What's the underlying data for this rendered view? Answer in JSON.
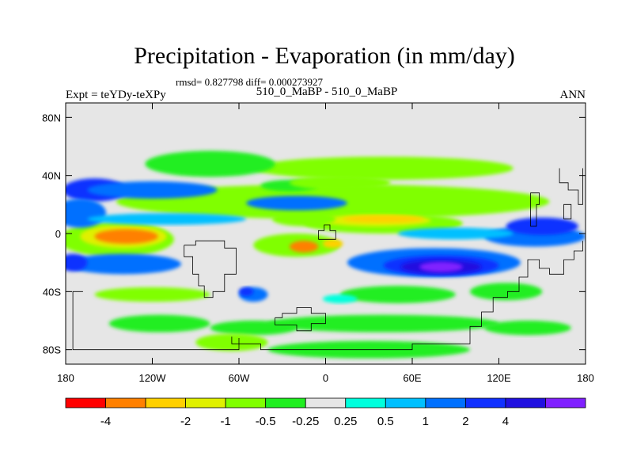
{
  "chart_data": {
    "type": "heatmap",
    "title": "Precipitation - Evaporation (in mm/day)",
    "stats_line": "rmsd= 0.827798 diff= 0.000273927",
    "left_label": "Expt = teYDy-teXPy",
    "center_label": "510_0_MaBP - 510_0_MaBP",
    "right_label": "ANN",
    "x_range": [
      -180,
      180
    ],
    "y_range": [
      -90,
      90
    ],
    "x_ticks": [
      {
        "value": -180,
        "label": "180"
      },
      {
        "value": -120,
        "label": "120W"
      },
      {
        "value": -60,
        "label": "60W"
      },
      {
        "value": 0,
        "label": "0"
      },
      {
        "value": 60,
        "label": "60E"
      },
      {
        "value": 120,
        "label": "120E"
      },
      {
        "value": 180,
        "label": "180"
      }
    ],
    "y_ticks": [
      {
        "value": 80,
        "label": "80N"
      },
      {
        "value": 40,
        "label": "40N"
      },
      {
        "value": 0,
        "label": "0"
      },
      {
        "value": -40,
        "label": "40S"
      },
      {
        "value": -80,
        "label": "80S"
      }
    ],
    "colorbar": {
      "colors": [
        "#ff0000",
        "#ff8000",
        "#ffd000",
        "#e0f000",
        "#80ff00",
        "#20ee20",
        "#e6e6e6",
        "#00ffdd",
        "#00c0ff",
        "#0070ff",
        "#1030ff",
        "#2010e0",
        "#8020ff"
      ],
      "labels": [
        "-4",
        "-2",
        "-1",
        "-0.5",
        "-0.25",
        "0.25",
        "0.5",
        "1",
        "2",
        "4"
      ],
      "label_positions": [
        1,
        3,
        4,
        5,
        6,
        7,
        8,
        9,
        10,
        11
      ]
    },
    "background_color": "#e6e6e6",
    "field": [
      {
        "lon": 5,
        "lat": 22,
        "rx": 150,
        "ry": 12,
        "level": 4
      },
      {
        "lon": -25,
        "lat": 33,
        "rx": 20,
        "ry": 4,
        "level": 5
      },
      {
        "lon": 40,
        "lat": 45,
        "rx": 90,
        "ry": 8,
        "level": 4
      },
      {
        "lon": -80,
        "lat": 48,
        "rx": 45,
        "ry": 9,
        "level": 5
      },
      {
        "lon": 10,
        "lat": 35,
        "rx": 35,
        "ry": 5,
        "level": 4
      },
      {
        "lon": 40,
        "lat": 7,
        "rx": 55,
        "ry": 7,
        "level": 4
      },
      {
        "lon": 35,
        "lat": 9,
        "rx": 38,
        "ry": 4,
        "level": 3
      },
      {
        "lon": 40,
        "lat": 10,
        "rx": 28,
        "ry": 2.5,
        "level": 2
      },
      {
        "lon": -15,
        "lat": 10,
        "rx": 22,
        "ry": 5,
        "level": 4
      },
      {
        "lon": -145,
        "lat": -4,
        "rx": 40,
        "ry": 12,
        "level": 4
      },
      {
        "lon": -140,
        "lat": -2,
        "rx": 30,
        "ry": 8,
        "level": 3
      },
      {
        "lon": -138,
        "lat": -2,
        "rx": 22,
        "ry": 5,
        "level": 1
      },
      {
        "lon": -20,
        "lat": -8,
        "rx": 30,
        "ry": 8,
        "level": 4
      },
      {
        "lon": -15,
        "lat": -9,
        "rx": 10,
        "ry": 4,
        "level": 1
      },
      {
        "lon": 5,
        "lat": -7,
        "rx": 7,
        "ry": 3,
        "level": 2
      },
      {
        "lon": -160,
        "lat": 30,
        "rx": 22,
        "ry": 8,
        "level": 10
      },
      {
        "lon": -120,
        "lat": 30,
        "rx": 45,
        "ry": 6,
        "level": 9
      },
      {
        "lon": -170,
        "lat": 14,
        "rx": 18,
        "ry": 10,
        "level": 9
      },
      {
        "lon": -110,
        "lat": 10,
        "rx": 55,
        "ry": 4,
        "level": 8
      },
      {
        "lon": -140,
        "lat": -21,
        "rx": 40,
        "ry": 7,
        "level": 9
      },
      {
        "lon": -175,
        "lat": -20,
        "rx": 10,
        "ry": 6,
        "level": 10
      },
      {
        "lon": -20,
        "lat": 21,
        "rx": 35,
        "ry": 5,
        "level": 9
      },
      {
        "lon": 75,
        "lat": -20,
        "rx": 60,
        "ry": 10,
        "level": 9
      },
      {
        "lon": 80,
        "lat": -22,
        "rx": 40,
        "ry": 7,
        "level": 10
      },
      {
        "lon": 80,
        "lat": -23,
        "rx": 28,
        "ry": 5,
        "level": 11
      },
      {
        "lon": 80,
        "lat": -23,
        "rx": 15,
        "ry": 3.5,
        "level": 12
      },
      {
        "lon": 145,
        "lat": -2,
        "rx": 35,
        "ry": 7,
        "level": 9
      },
      {
        "lon": 150,
        "lat": 5,
        "rx": 25,
        "ry": 6,
        "level": 10
      },
      {
        "lon": 90,
        "lat": 0,
        "rx": 40,
        "ry": 4,
        "level": 8
      },
      {
        "lon": -50,
        "lat": -42,
        "rx": 10,
        "ry": 5,
        "level": 9
      },
      {
        "lon": -55,
        "lat": -40,
        "rx": 5,
        "ry": 3,
        "level": 10
      },
      {
        "lon": 50,
        "lat": -42,
        "rx": 40,
        "ry": 6,
        "level": 5
      },
      {
        "lon": 125,
        "lat": -40,
        "rx": 25,
        "ry": 6,
        "level": 5
      },
      {
        "lon": -120,
        "lat": -42,
        "rx": 40,
        "ry": 5,
        "level": 4
      },
      {
        "lon": -115,
        "lat": -62,
        "rx": 35,
        "ry": 6,
        "level": 5
      },
      {
        "lon": 40,
        "lat": -62,
        "rx": 80,
        "ry": 6,
        "level": 5
      },
      {
        "lon": -50,
        "lat": -65,
        "rx": 30,
        "ry": 5,
        "level": 5
      },
      {
        "lon": 140,
        "lat": -65,
        "rx": 30,
        "ry": 5,
        "level": 5
      },
      {
        "lon": 30,
        "lat": -80,
        "rx": 70,
        "ry": 6,
        "level": 5
      },
      {
        "lon": -65,
        "lat": -75,
        "rx": 25,
        "ry": 6,
        "level": 4
      },
      {
        "lon": 10,
        "lat": -45,
        "rx": 12,
        "ry": 3,
        "level": 7
      }
    ],
    "land_outlines": [
      [
        [
          -98,
          -8
        ],
        [
          -90,
          -8
        ],
        [
          -90,
          -5
        ],
        [
          -70,
          -5
        ],
        [
          -70,
          -10
        ],
        [
          -62,
          -10
        ],
        [
          -62,
          -28
        ],
        [
          -70,
          -28
        ],
        [
          -70,
          -40
        ],
        [
          -78,
          -40
        ],
        [
          -78,
          -44
        ],
        [
          -84,
          -44
        ],
        [
          -84,
          -36
        ],
        [
          -88,
          -36
        ],
        [
          -88,
          -28
        ],
        [
          -92,
          -28
        ],
        [
          -92,
          -16
        ],
        [
          -98,
          -16
        ],
        [
          -98,
          -8
        ]
      ],
      [
        [
          -5,
          -4
        ],
        [
          -5,
          2
        ],
        [
          -1,
          2
        ],
        [
          -1,
          6
        ],
        [
          3,
          6
        ],
        [
          3,
          2
        ],
        [
          7,
          2
        ],
        [
          7,
          -4
        ],
        [
          -5,
          -4
        ]
      ],
      [
        [
          -35,
          -58
        ],
        [
          -30,
          -58
        ],
        [
          -30,
          -55
        ],
        [
          -20,
          -55
        ],
        [
          -20,
          -51
        ],
        [
          -10,
          -51
        ],
        [
          -10,
          -55
        ],
        [
          0,
          -55
        ],
        [
          0,
          -62
        ],
        [
          -10,
          -62
        ],
        [
          -10,
          -67
        ],
        [
          -20,
          -67
        ],
        [
          -20,
          -63
        ],
        [
          -35,
          -63
        ],
        [
          -35,
          -58
        ]
      ],
      [
        [
          -65,
          -71
        ],
        [
          -65,
          -76
        ],
        [
          -45,
          -76
        ],
        [
          -45,
          -80
        ],
        [
          60,
          -80
        ],
        [
          60,
          -76
        ],
        [
          100,
          -76
        ],
        [
          100,
          -64
        ],
        [
          108,
          -64
        ],
        [
          108,
          -54
        ],
        [
          116,
          -54
        ],
        [
          116,
          -44
        ],
        [
          126,
          -44
        ],
        [
          126,
          -40
        ],
        [
          134,
          -40
        ],
        [
          134,
          -30
        ],
        [
          140,
          -30
        ],
        [
          140,
          -18
        ],
        [
          148,
          -18
        ],
        [
          148,
          -24
        ],
        [
          155,
          -24
        ],
        [
          155,
          -28
        ],
        [
          165,
          -28
        ],
        [
          165,
          -18
        ],
        [
          172,
          -18
        ],
        [
          172,
          -12
        ],
        [
          178,
          -12
        ],
        [
          178,
          -5
        ]
      ],
      [
        [
          142,
          10
        ],
        [
          142,
          5
        ],
        [
          146,
          5
        ],
        [
          146,
          20
        ],
        [
          148,
          20
        ],
        [
          148,
          28
        ],
        [
          142,
          28
        ],
        [
          142,
          10
        ]
      ],
      [
        [
          162,
          45
        ],
        [
          162,
          35
        ],
        [
          168,
          35
        ],
        [
          168,
          30
        ],
        [
          175,
          30
        ],
        [
          175,
          20
        ],
        [
          178,
          20
        ],
        [
          178,
          45
        ]
      ],
      [
        [
          165,
          10
        ],
        [
          170,
          10
        ],
        [
          170,
          20
        ],
        [
          165,
          20
        ],
        [
          165,
          10
        ]
      ],
      [
        [
          -168,
          -40
        ],
        [
          -175,
          -40
        ],
        [
          -175,
          -80
        ],
        [
          -60,
          -80
        ],
        [
          -60,
          -72
        ]
      ]
    ]
  }
}
